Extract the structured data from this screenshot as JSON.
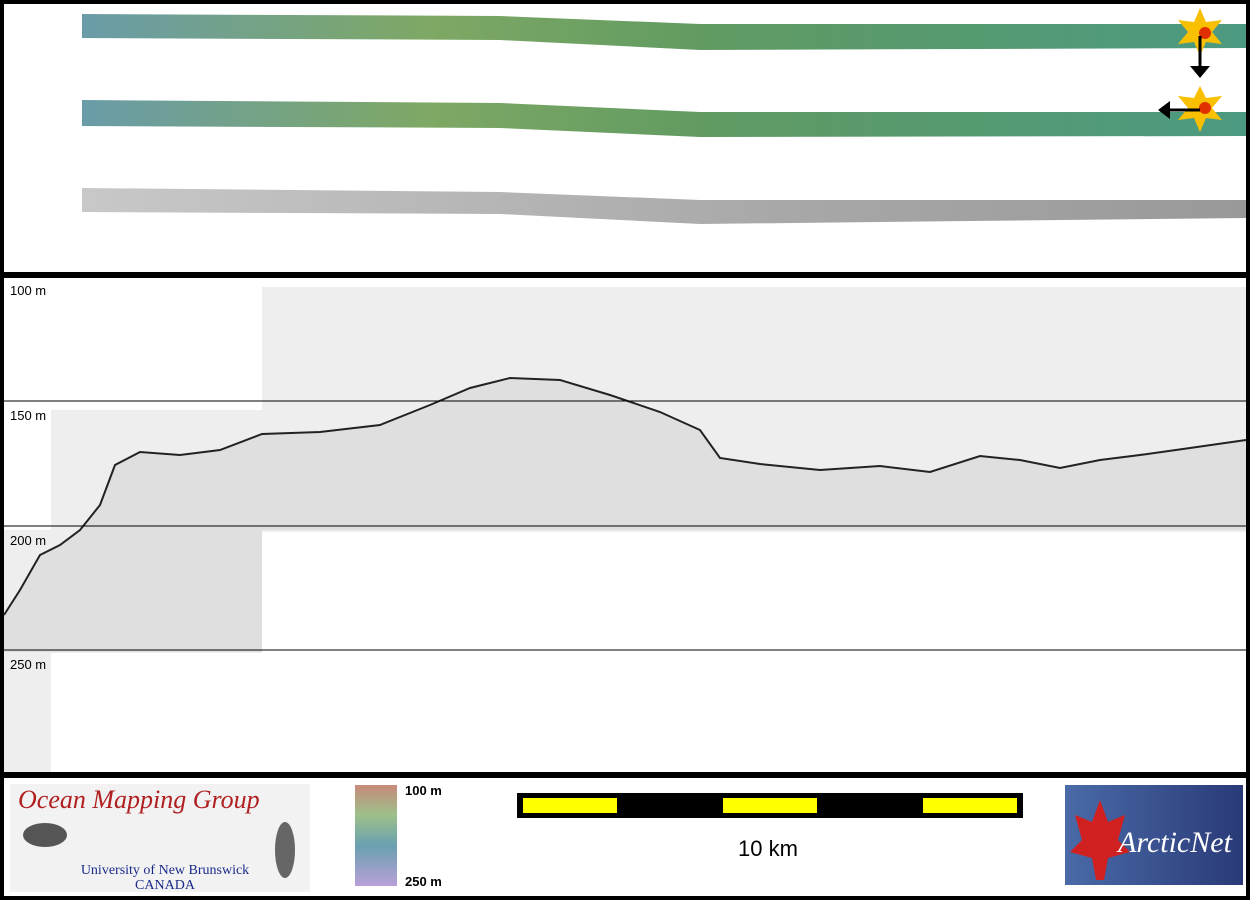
{
  "profile": {
    "depth_labels": [
      "100 m",
      "150 m",
      "200 m",
      "250 m"
    ]
  },
  "footer": {
    "logo_left": {
      "title": "Ocean Mapping Group",
      "line1": "University of New Brunswick",
      "line2": "CANADA"
    },
    "colorbar": {
      "top": "100 m",
      "bottom": "250 m"
    },
    "scale_bar": {
      "label": "10 km"
    },
    "logo_right": {
      "title": "ArcticNet"
    }
  }
}
